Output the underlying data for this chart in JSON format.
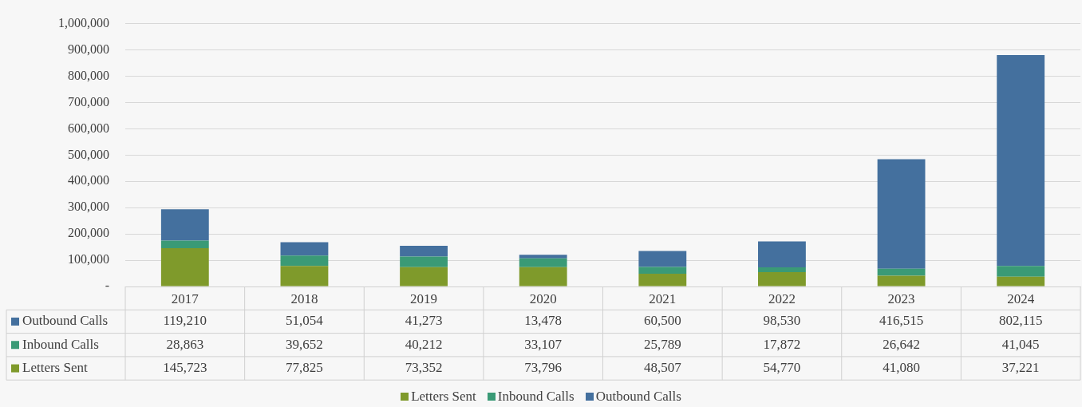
{
  "chart_data": {
    "type": "bar",
    "stacked": true,
    "categories": [
      "2017",
      "2018",
      "2019",
      "2020",
      "2021",
      "2022",
      "2023",
      "2024"
    ],
    "series": [
      {
        "name": "Letters Sent",
        "color": "#7f9a2b",
        "values": [
          145723,
          77825,
          73352,
          73796,
          48507,
          54770,
          41080,
          37221
        ],
        "value_labels": [
          "145,723",
          "77,825",
          "73,352",
          "73,796",
          "48,507",
          "54,770",
          "41,080",
          "37,221"
        ]
      },
      {
        "name": "Inbound Calls",
        "color": "#3a9a76",
        "values": [
          28863,
          39652,
          40212,
          33107,
          25789,
          17872,
          26642,
          41045
        ],
        "value_labels": [
          "28,863",
          "39,652",
          "40,212",
          "33,107",
          "25,789",
          "17,872",
          "26,642",
          "41,045"
        ]
      },
      {
        "name": "Outbound Calls",
        "color": "#44709e",
        "values": [
          119210,
          51054,
          41273,
          13478,
          60500,
          98530,
          416515,
          802115
        ],
        "value_labels": [
          "119,210",
          "51,054",
          "41,273",
          "13,478",
          "60,500",
          "98,530",
          "416,515",
          "802,115"
        ]
      }
    ],
    "ylim": [
      0,
      1000000
    ],
    "yticks": [
      {
        "value": 0,
        "label": "-"
      },
      {
        "value": 100000,
        "label": "100,000"
      },
      {
        "value": 200000,
        "label": "200,000"
      },
      {
        "value": 300000,
        "label": "300,000"
      },
      {
        "value": 400000,
        "label": "400,000"
      },
      {
        "value": 500000,
        "label": "500,000"
      },
      {
        "value": 600000,
        "label": "600,000"
      },
      {
        "value": 700000,
        "label": "700,000"
      },
      {
        "value": 800000,
        "label": "800,000"
      },
      {
        "value": 900000,
        "label": "900,000"
      },
      {
        "value": 1000000,
        "label": "1,000,000"
      }
    ],
    "grid": "y",
    "legend": "bottom"
  }
}
